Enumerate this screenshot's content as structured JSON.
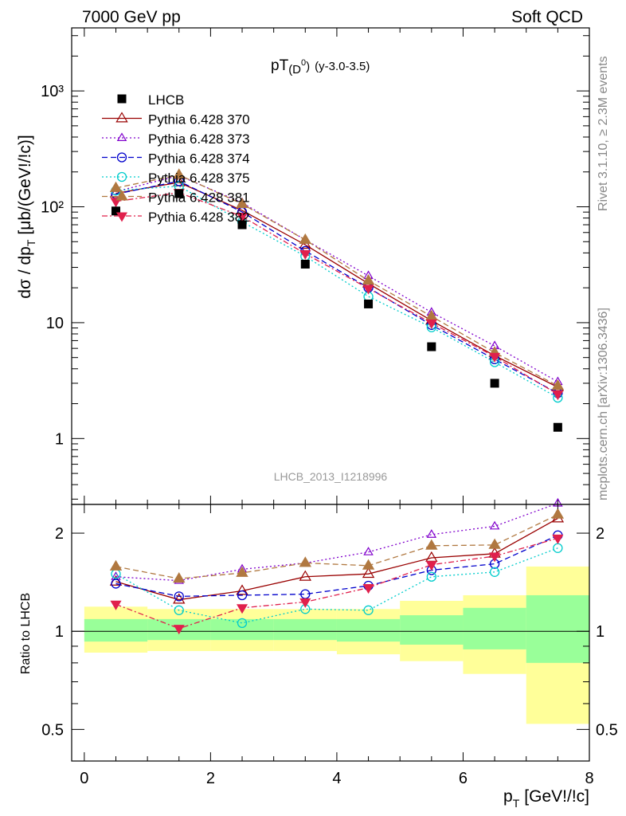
{
  "header": {
    "left": "7000 GeV pp",
    "right": "Soft QCD"
  },
  "side_labels": {
    "top": "Rivet 3.1.10, ≥ 2.3M events",
    "bottom": "mcplots.cern.ch [arXiv:1306.3436]"
  },
  "watermark": "LHCB_2013_I1218996",
  "plot_title": {
    "main": "pT",
    "sub": "(D",
    "sup": "0",
    "close": ")",
    "extra": "(y-3.0-3.5)"
  },
  "axes": {
    "ylabel_top": "dσ / dp",
    "ylabel_top_sub": "T",
    "ylabel_top_unit": "[μb/(GeV!/!c)]",
    "ylabel_bottom": "Ratio to LHCB",
    "xlabel": "p",
    "xlabel_sub": "T",
    "xlabel_unit": "[GeV!/!c]",
    "y_top_ticks": [
      "1",
      "10",
      "10²",
      "10³"
    ],
    "y_bottom_ticks": [
      "0.5",
      "1",
      "2"
    ],
    "x_ticks": [
      "0",
      "2",
      "4",
      "6",
      "8"
    ]
  },
  "chart_data": {
    "type": "scatter",
    "x": [
      0.5,
      1.5,
      2.5,
      3.5,
      4.5,
      5.5,
      6.5,
      7.5
    ],
    "xlim": [
      -0.2,
      8.0
    ],
    "ylim": [
      0.27,
      3500
    ],
    "yscale": "log",
    "ratio_ylim": [
      0.4,
      2.45
    ],
    "data": {
      "name": "LHCB",
      "values": [
        92,
        130,
        70,
        32,
        14.5,
        6.2,
        3.0,
        1.25
      ]
    },
    "band_edges": [
      0,
      1,
      2,
      3,
      4,
      5,
      6,
      7,
      8
    ],
    "band_inner": [
      [
        0.93,
        1.09
      ],
      [
        0.94,
        1.09
      ],
      [
        0.94,
        1.09
      ],
      [
        0.94,
        1.09
      ],
      [
        0.93,
        1.09
      ],
      [
        0.91,
        1.12
      ],
      [
        0.88,
        1.18
      ],
      [
        0.8,
        1.29
      ]
    ],
    "band_outer": [
      [
        0.86,
        1.19
      ],
      [
        0.87,
        1.17
      ],
      [
        0.87,
        1.17
      ],
      [
        0.87,
        1.17
      ],
      [
        0.85,
        1.17
      ],
      [
        0.81,
        1.24
      ],
      [
        0.74,
        1.29
      ],
      [
        0.52,
        1.58
      ]
    ],
    "series": [
      {
        "name": "Pythia 6.428 370",
        "color": "#990000",
        "dash": "",
        "marker": "triangle-open",
        "ratio": [
          1.42,
          1.25,
          1.33,
          1.47,
          1.5,
          1.68,
          1.73,
          2.22
        ]
      },
      {
        "name": "Pythia 6.428 373",
        "color": "#8000cc",
        "dash": "2,3",
        "marker": "triangle-open-small",
        "ratio": [
          1.47,
          1.43,
          1.55,
          1.62,
          1.75,
          1.98,
          2.1,
          2.47
        ]
      },
      {
        "name": "Pythia 6.428 374",
        "color": "#0000cc",
        "dash": "7,4",
        "marker": "circle-open",
        "ratio": [
          1.4,
          1.28,
          1.29,
          1.3,
          1.38,
          1.54,
          1.61,
          1.97
        ]
      },
      {
        "name": "Pythia 6.428 375",
        "color": "#00cccc",
        "dash": "2,3",
        "marker": "circle-open",
        "ratio": [
          1.5,
          1.16,
          1.06,
          1.17,
          1.16,
          1.47,
          1.52,
          1.8
        ]
      },
      {
        "name": "Pythia 6.428 381",
        "color": "#b07840",
        "dash": "7,4",
        "marker": "triangle-filled",
        "ratio": [
          1.58,
          1.45,
          1.51,
          1.62,
          1.59,
          1.83,
          1.84,
          2.28
        ]
      },
      {
        "name": "Pythia 6.428 382",
        "color": "#e0204c",
        "dash": "7,3,2,3",
        "marker": "triangle-down-filled",
        "ratio": [
          1.21,
          1.02,
          1.18,
          1.23,
          1.36,
          1.6,
          1.7,
          1.93
        ]
      }
    ]
  }
}
